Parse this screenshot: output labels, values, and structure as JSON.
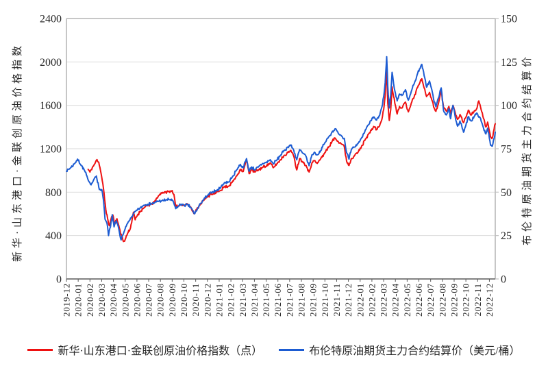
{
  "chart_data": {
    "type": "line",
    "title": "",
    "grid": true,
    "legend_position": "bottom",
    "x_domain": [
      0,
      36.5
    ],
    "x_labels": [
      "2019-12",
      "2020-01",
      "2020-02",
      "2020-03",
      "2020-04",
      "2020-05",
      "2020-06",
      "2020-07",
      "2020-08",
      "2020-09",
      "2020-10",
      "2020-11",
      "2020-12",
      "2021-01",
      "2021-02",
      "2021-03",
      "2021-04",
      "2021-05",
      "2021-06",
      "2021-07",
      "2021-08",
      "2021-09",
      "2021-10",
      "2021-11",
      "2021-12",
      "2022-01",
      "2022-02",
      "2022-03",
      "2022-04",
      "2022-05",
      "2022-06",
      "2022-07",
      "2022-08",
      "2022-09",
      "2022-10",
      "2022-11",
      "2022-12"
    ],
    "left_axis": {
      "title": "新华·山东港口·金联创原油价格指数",
      "min": 0,
      "max": 2400,
      "ticks": [
        0,
        400,
        800,
        1200,
        1600,
        2000,
        2400
      ]
    },
    "right_axis": {
      "title": "布伦特原油期货主力合约结算价",
      "min": 0,
      "max": 150,
      "ticks": [
        0,
        25,
        50,
        75,
        100,
        125,
        150
      ]
    },
    "colors": {
      "grid": "#d9d9d9",
      "border": "#bfbfbf",
      "axis": "#595959",
      "text": "#262626"
    },
    "series": [
      {
        "name": "新华·山东港口·金联创原油价格指数（点）",
        "axis": "left",
        "color": "#ee1111",
        "unit": "点",
        "noise": 14,
        "seed": 11,
        "points": [
          [
            1.85,
            1010
          ],
          [
            2.0,
            985
          ],
          [
            2.2,
            1025
          ],
          [
            2.4,
            1060
          ],
          [
            2.6,
            1100
          ],
          [
            2.75,
            1075
          ],
          [
            2.9,
            1000
          ],
          [
            3.05,
            905
          ],
          [
            3.2,
            790
          ],
          [
            3.35,
            640
          ],
          [
            3.5,
            560
          ],
          [
            3.65,
            490
          ],
          [
            3.8,
            555
          ],
          [
            3.95,
            590
          ],
          [
            4.1,
            505
          ],
          [
            4.3,
            555
          ],
          [
            4.5,
            470
          ],
          [
            4.7,
            395
          ],
          [
            4.85,
            345
          ],
          [
            5.0,
            365
          ],
          [
            5.2,
            420
          ],
          [
            5.45,
            470
          ],
          [
            5.7,
            615
          ],
          [
            5.85,
            545
          ],
          [
            6.05,
            590
          ],
          [
            6.3,
            625
          ],
          [
            6.6,
            655
          ],
          [
            6.9,
            675
          ],
          [
            7.2,
            690
          ],
          [
            7.5,
            710
          ],
          [
            7.8,
            760
          ],
          [
            8.1,
            795
          ],
          [
            8.4,
            800
          ],
          [
            8.7,
            805
          ],
          [
            9.0,
            815
          ],
          [
            9.15,
            780
          ],
          [
            9.3,
            665
          ],
          [
            9.5,
            670
          ],
          [
            9.75,
            685
          ],
          [
            10.0,
            680
          ],
          [
            10.3,
            690
          ],
          [
            10.6,
            660
          ],
          [
            10.88,
            600
          ],
          [
            11.1,
            645
          ],
          [
            11.4,
            690
          ],
          [
            11.7,
            725
          ],
          [
            12.0,
            760
          ],
          [
            12.4,
            780
          ],
          [
            12.8,
            800
          ],
          [
            13.1,
            815
          ],
          [
            13.45,
            850
          ],
          [
            13.8,
            855
          ],
          [
            14.1,
            890
          ],
          [
            14.5,
            950
          ],
          [
            14.8,
            1010
          ],
          [
            15.05,
            990
          ],
          [
            15.33,
            1100
          ],
          [
            15.55,
            970
          ],
          [
            15.75,
            1005
          ],
          [
            16.05,
            985
          ],
          [
            16.35,
            1005
          ],
          [
            16.7,
            1030
          ],
          [
            17.0,
            1040
          ],
          [
            17.35,
            1070
          ],
          [
            17.6,
            1025
          ],
          [
            17.9,
            1060
          ],
          [
            18.2,
            1095
          ],
          [
            18.55,
            1140
          ],
          [
            18.85,
            1165
          ],
          [
            19.1,
            1185
          ],
          [
            19.35,
            1130
          ],
          [
            19.6,
            1005
          ],
          [
            19.85,
            1110
          ],
          [
            20.1,
            1080
          ],
          [
            20.4,
            1045
          ],
          [
            20.65,
            985
          ],
          [
            20.9,
            1070
          ],
          [
            21.1,
            1090
          ],
          [
            21.35,
            1065
          ],
          [
            21.65,
            1110
          ],
          [
            22.0,
            1165
          ],
          [
            22.35,
            1220
          ],
          [
            22.6,
            1265
          ],
          [
            22.85,
            1300
          ],
          [
            23.1,
            1270
          ],
          [
            23.4,
            1245
          ],
          [
            23.65,
            1220
          ],
          [
            23.85,
            1085
          ],
          [
            24.05,
            1045
          ],
          [
            24.25,
            1110
          ],
          [
            24.55,
            1140
          ],
          [
            24.8,
            1165
          ],
          [
            25.1,
            1215
          ],
          [
            25.45,
            1290
          ],
          [
            25.75,
            1340
          ],
          [
            25.95,
            1370
          ],
          [
            26.15,
            1405
          ],
          [
            26.4,
            1375
          ],
          [
            26.65,
            1410
          ],
          [
            26.85,
            1470
          ],
          [
            27.0,
            1560
          ],
          [
            27.13,
            1690
          ],
          [
            27.26,
            1950
          ],
          [
            27.35,
            1620
          ],
          [
            27.48,
            1460
          ],
          [
            27.6,
            1560
          ],
          [
            27.72,
            1770
          ],
          [
            27.85,
            1680
          ],
          [
            28.0,
            1600
          ],
          [
            28.15,
            1520
          ],
          [
            28.35,
            1590
          ],
          [
            28.6,
            1580
          ],
          [
            28.85,
            1630
          ],
          [
            29.1,
            1540
          ],
          [
            29.35,
            1620
          ],
          [
            29.6,
            1680
          ],
          [
            29.85,
            1760
          ],
          [
            30.05,
            1800
          ],
          [
            30.25,
            1845
          ],
          [
            30.45,
            1760
          ],
          [
            30.65,
            1680
          ],
          [
            30.9,
            1720
          ],
          [
            31.1,
            1650
          ],
          [
            31.3,
            1575
          ],
          [
            31.45,
            1545
          ],
          [
            31.65,
            1610
          ],
          [
            31.9,
            1730
          ],
          [
            32.1,
            1580
          ],
          [
            32.35,
            1545
          ],
          [
            32.55,
            1590
          ],
          [
            32.7,
            1525
          ],
          [
            32.9,
            1600
          ],
          [
            33.1,
            1530
          ],
          [
            33.3,
            1470
          ],
          [
            33.5,
            1515
          ],
          [
            33.8,
            1440
          ],
          [
            34.0,
            1490
          ],
          [
            34.2,
            1555
          ],
          [
            34.45,
            1510
          ],
          [
            34.7,
            1545
          ],
          [
            34.95,
            1575
          ],
          [
            35.1,
            1640
          ],
          [
            35.3,
            1560
          ],
          [
            35.5,
            1480
          ],
          [
            35.7,
            1400
          ],
          [
            35.85,
            1445
          ],
          [
            36.1,
            1310
          ],
          [
            36.25,
            1300
          ],
          [
            36.4,
            1380
          ],
          [
            36.5,
            1430
          ]
        ]
      },
      {
        "name": "布伦特原油期货主力合约结算价（美元/桶）",
        "axis": "right",
        "color": "#1d5cd2",
        "unit": "美元/桶",
        "noise": 0.9,
        "seed": 7,
        "points": [
          [
            0,
            62
          ],
          [
            0.35,
            64
          ],
          [
            0.7,
            66.5
          ],
          [
            0.95,
            69
          ],
          [
            1.2,
            66
          ],
          [
            1.5,
            63
          ],
          [
            1.8,
            58
          ],
          [
            2.1,
            54.2
          ],
          [
            2.35,
            57.5
          ],
          [
            2.55,
            59.3
          ],
          [
            2.8,
            51.5
          ],
          [
            3.0,
            51.5
          ],
          [
            3.15,
            45.5
          ],
          [
            3.28,
            34.5
          ],
          [
            3.45,
            32
          ],
          [
            3.58,
            25
          ],
          [
            3.75,
            30
          ],
          [
            3.9,
            37
          ],
          [
            4.05,
            30
          ],
          [
            4.25,
            33.5
          ],
          [
            4.45,
            29
          ],
          [
            4.65,
            22.5
          ],
          [
            4.85,
            26
          ],
          [
            5.1,
            30.5
          ],
          [
            5.4,
            34
          ],
          [
            5.7,
            37.5
          ],
          [
            6.0,
            39.5
          ],
          [
            6.3,
            41
          ],
          [
            6.6,
            42.5
          ],
          [
            6.9,
            43
          ],
          [
            7.2,
            43.2
          ],
          [
            7.5,
            43.8
          ],
          [
            7.8,
            44.8
          ],
          [
            8.1,
            45
          ],
          [
            8.5,
            45.5
          ],
          [
            8.85,
            45.8
          ],
          [
            9.1,
            44.5
          ],
          [
            9.3,
            40.5
          ],
          [
            9.5,
            41.8
          ],
          [
            9.75,
            43
          ],
          [
            10.0,
            42.3
          ],
          [
            10.3,
            42.8
          ],
          [
            10.6,
            41
          ],
          [
            10.88,
            37.5
          ],
          [
            11.1,
            39.5
          ],
          [
            11.4,
            43.5
          ],
          [
            11.7,
            46
          ],
          [
            12.0,
            48
          ],
          [
            12.4,
            50
          ],
          [
            12.8,
            51
          ],
          [
            13.1,
            52.5
          ],
          [
            13.45,
            55.5
          ],
          [
            13.8,
            55.8
          ],
          [
            14.1,
            58.5
          ],
          [
            14.5,
            63
          ],
          [
            14.8,
            66
          ],
          [
            15.05,
            64
          ],
          [
            15.33,
            69.3
          ],
          [
            15.55,
            62
          ],
          [
            15.75,
            64.5
          ],
          [
            16.05,
            62.8
          ],
          [
            16.35,
            64.5
          ],
          [
            16.7,
            66.5
          ],
          [
            17.0,
            67
          ],
          [
            17.35,
            68.7
          ],
          [
            17.6,
            66.3
          ],
          [
            17.9,
            68.5
          ],
          [
            18.2,
            71
          ],
          [
            18.55,
            74
          ],
          [
            18.85,
            76
          ],
          [
            19.1,
            77.2
          ],
          [
            19.35,
            74
          ],
          [
            19.6,
            68.6
          ],
          [
            19.85,
            74.5
          ],
          [
            20.1,
            72.5
          ],
          [
            20.4,
            70.5
          ],
          [
            20.65,
            65.2
          ],
          [
            20.9,
            71.5
          ],
          [
            21.1,
            73
          ],
          [
            21.35,
            71.5
          ],
          [
            21.65,
            74
          ],
          [
            22.0,
            78.5
          ],
          [
            22.35,
            82
          ],
          [
            22.6,
            84.5
          ],
          [
            22.85,
            86.4
          ],
          [
            23.1,
            84.5
          ],
          [
            23.4,
            82.5
          ],
          [
            23.65,
            81
          ],
          [
            23.85,
            72.7
          ],
          [
            24.05,
            69
          ],
          [
            24.25,
            74.5
          ],
          [
            24.55,
            76
          ],
          [
            24.8,
            77.8
          ],
          [
            25.1,
            81
          ],
          [
            25.45,
            86
          ],
          [
            25.75,
            89
          ],
          [
            25.95,
            91.2
          ],
          [
            26.15,
            93.3
          ],
          [
            26.4,
            91.5
          ],
          [
            26.65,
            94
          ],
          [
            26.85,
            99
          ],
          [
            27.0,
            105
          ],
          [
            27.13,
            113
          ],
          [
            27.26,
            128
          ],
          [
            27.35,
            111
          ],
          [
            27.48,
            98.5
          ],
          [
            27.6,
            106
          ],
          [
            27.72,
            119
          ],
          [
            27.85,
            112.5
          ],
          [
            28.0,
            107
          ],
          [
            28.15,
            102.5
          ],
          [
            28.35,
            106.5
          ],
          [
            28.6,
            106
          ],
          [
            28.85,
            109
          ],
          [
            29.1,
            103
          ],
          [
            29.35,
            108
          ],
          [
            29.6,
            112.5
          ],
          [
            29.85,
            117.5
          ],
          [
            30.05,
            121
          ],
          [
            30.25,
            123.6
          ],
          [
            30.45,
            117
          ],
          [
            30.65,
            110.5
          ],
          [
            30.9,
            114
          ],
          [
            31.1,
            109
          ],
          [
            31.3,
            102
          ],
          [
            31.45,
            99.1
          ],
          [
            31.65,
            104
          ],
          [
            31.9,
            110
          ],
          [
            32.1,
            97
          ],
          [
            32.35,
            94.5
          ],
          [
            32.55,
            98
          ],
          [
            32.7,
            92.3
          ],
          [
            32.9,
            100
          ],
          [
            33.1,
            93
          ],
          [
            33.3,
            88
          ],
          [
            33.5,
            91
          ],
          [
            33.8,
            84.5
          ],
          [
            34.0,
            88.5
          ],
          [
            34.2,
            93.5
          ],
          [
            34.45,
            91
          ],
          [
            34.7,
            93.5
          ],
          [
            34.95,
            95.5
          ],
          [
            35.2,
            93
          ],
          [
            35.45,
            88
          ],
          [
            35.7,
            83.5
          ],
          [
            35.85,
            86.8
          ],
          [
            36.1,
            77
          ],
          [
            36.25,
            76.5
          ],
          [
            36.4,
            81
          ],
          [
            36.5,
            84.5
          ]
        ]
      }
    ]
  }
}
